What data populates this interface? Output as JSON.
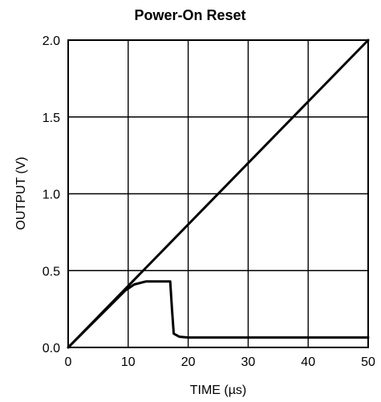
{
  "chart_data": {
    "type": "line",
    "title": "Power-On Reset",
    "xlabel": "TIME (µs)",
    "ylabel": "OUTPUT (V)",
    "xlim": [
      0,
      50
    ],
    "ylim": [
      0,
      2.0
    ],
    "x_ticks": [
      0,
      10,
      20,
      30,
      40,
      50
    ],
    "x_tick_labels": [
      "0",
      "10",
      "20",
      "30",
      "40",
      "50"
    ],
    "y_ticks": [
      0,
      0.5,
      1.0,
      1.5,
      2.0
    ],
    "y_tick_labels": [
      "0.0",
      "0.5",
      "1.0",
      "1.5",
      "2.0"
    ],
    "grid": true,
    "series": [
      {
        "x": [
          0,
          50
        ],
        "y": [
          0,
          2.0
        ]
      },
      {
        "x": [
          0,
          9.5,
          11,
          13,
          17,
          17.3,
          17.6,
          18.5,
          20,
          50
        ],
        "y": [
          0,
          0.37,
          0.41,
          0.43,
          0.43,
          0.25,
          0.09,
          0.07,
          0.065,
          0.065
        ]
      }
    ],
    "colors": {
      "line": "#000000",
      "grid": "#000000"
    }
  }
}
